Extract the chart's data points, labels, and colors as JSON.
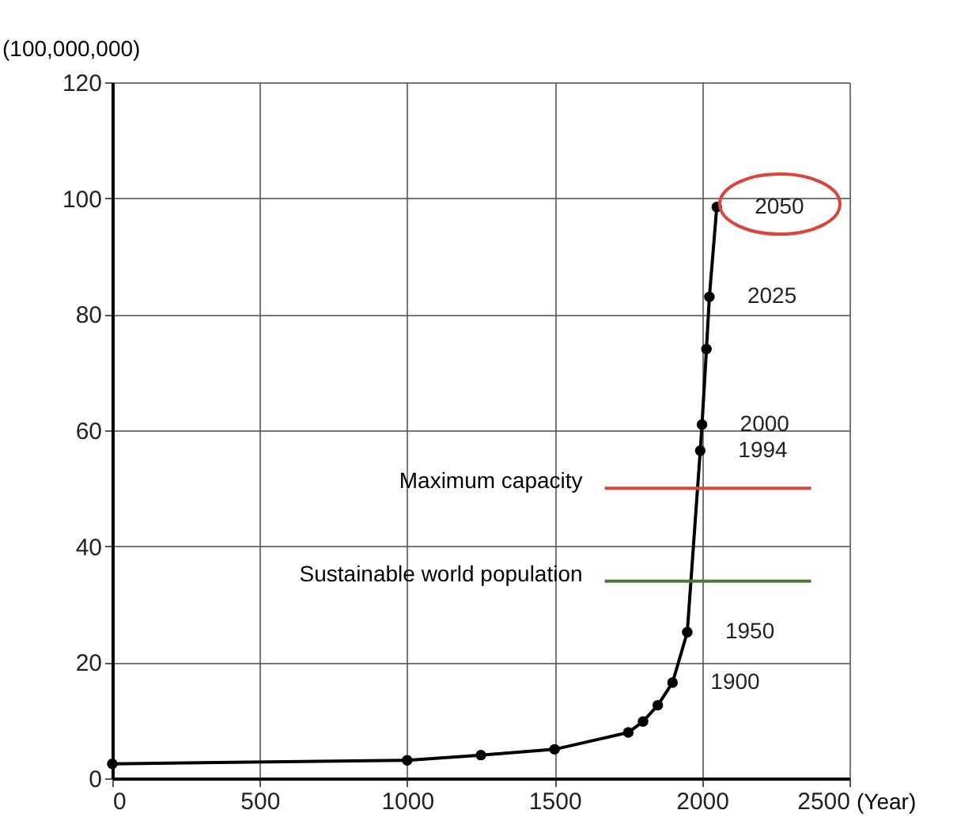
{
  "chart_data": {
    "type": "line",
    "ylabel": "(100,000,000)",
    "xlabel": "(Year)",
    "xlim": [
      0,
      2500
    ],
    "xticks": [
      0,
      500,
      1000,
      1500,
      2000,
      2500
    ],
    "ylim": [
      0,
      120
    ],
    "yticks": [
      0,
      20,
      40,
      60,
      80,
      100,
      120
    ],
    "grid": true,
    "marker": "circle",
    "line_style": "solid",
    "series": [
      {
        "x": [
          0,
          1000,
          1250,
          1500,
          1750,
          1800,
          1850,
          1900,
          1950,
          1994,
          2000,
          2015,
          2025,
          2050
        ],
        "values": [
          2.5,
          3.1,
          4,
          5,
          7.9,
          9.8,
          12.6,
          16.5,
          25.2,
          56.5,
          61,
          74,
          83,
          98.5
        ],
        "color": "#000000"
      },
      {
        "name": "Maximum capacity",
        "x": [
          1670,
          2370
        ],
        "values": [
          50,
          50
        ],
        "color": "#d9463b",
        "marker": "none"
      },
      {
        "name": "Sustainable world population",
        "x": [
          1670,
          2370
        ],
        "values": [
          34,
          34
        ],
        "color": "#4a7a3a",
        "marker": "none"
      }
    ],
    "annotations": [
      {
        "text": "2050",
        "x": 2050,
        "y": 98.5
      },
      {
        "text": "2025",
        "x": 2025,
        "y": 83
      },
      {
        "text": "2000",
        "x": 2000,
        "y": 61
      },
      {
        "text": "1994",
        "x": 1994,
        "y": 56.5
      },
      {
        "text": "1950",
        "x": 1950,
        "y": 25.2
      },
      {
        "text": "1900",
        "x": 1900,
        "y": 16.5
      }
    ]
  }
}
